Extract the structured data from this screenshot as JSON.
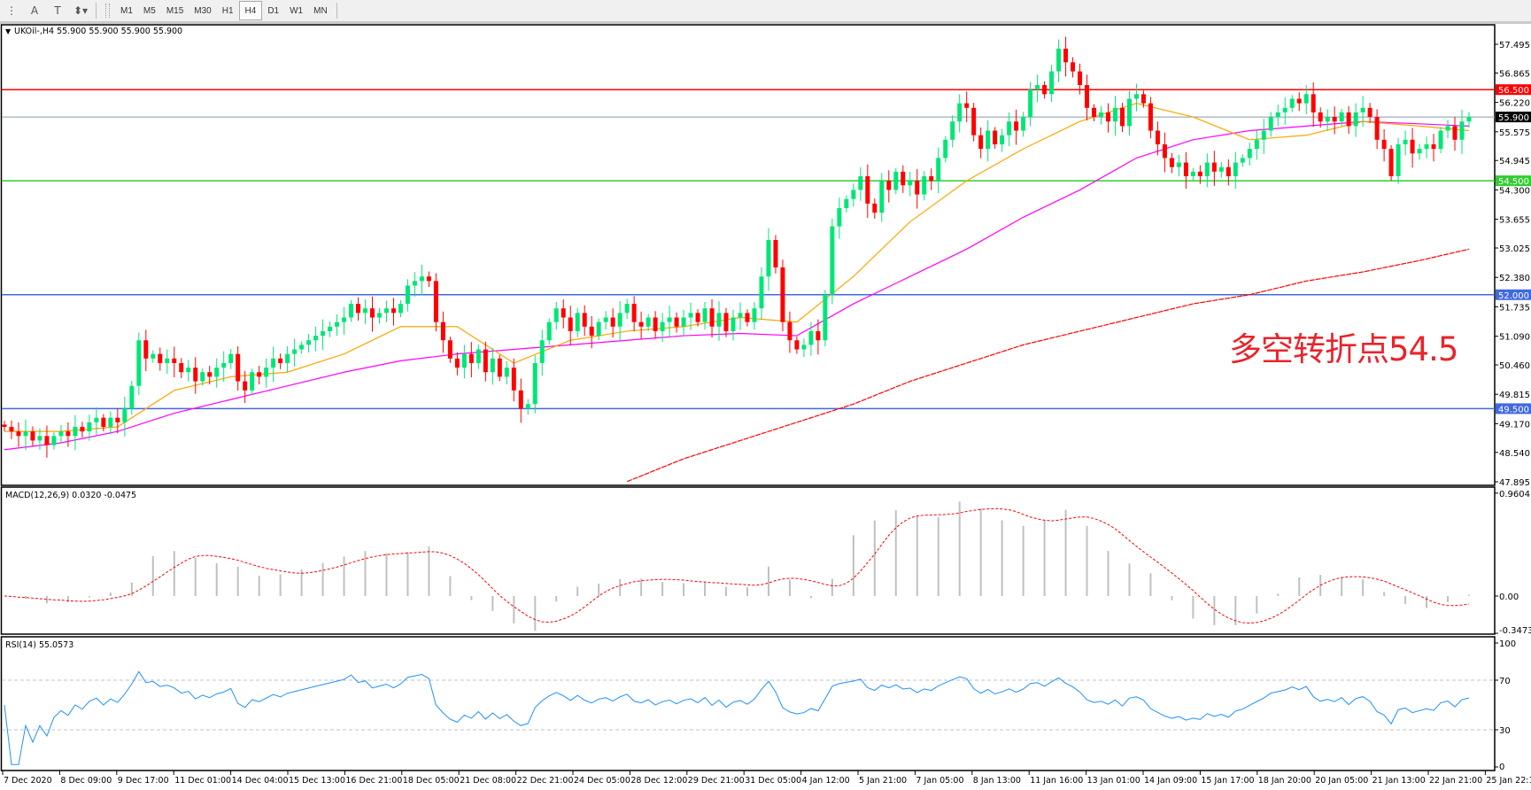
{
  "toolbar": {
    "tools": [
      {
        "icon": "grid-text-icon",
        "glyph": "⋮"
      },
      {
        "icon": "text-icon",
        "glyph": "A"
      },
      {
        "icon": "text-label-icon",
        "glyph": "T"
      },
      {
        "icon": "arrows-icon",
        "glyph": "⬍▾"
      }
    ],
    "timeframes": [
      "M1",
      "M5",
      "M15",
      "M30",
      "H1",
      "H4",
      "D1",
      "W1",
      "MN"
    ],
    "active_timeframe": "H4"
  },
  "chart": {
    "header": "UKOil-,H4  55.900 55.900 55.900 55.900",
    "symbol": "UKOil-",
    "timeframe": "H4",
    "ohlc": [
      55.9,
      55.9,
      55.9,
      55.9
    ],
    "annotation": "多空转折点54.5",
    "price_axis": [
      "57.495",
      "56.865",
      "56.220",
      "55.575",
      "54.945",
      "54.300",
      "53.655",
      "53.025",
      "52.380",
      "51.735",
      "51.090",
      "50.460",
      "49.815",
      "49.170",
      "48.540",
      "47.895"
    ],
    "price_range": [
      47.895,
      57.495
    ],
    "levels": [
      {
        "price": 56.5,
        "label": "56.500",
        "color": "#ff0000"
      },
      {
        "price": 55.9,
        "label": "55.900",
        "color": "#000000",
        "line_color": "#8a9aa6"
      },
      {
        "price": 54.5,
        "label": "54.500",
        "color": "#32cd32"
      },
      {
        "price": 52.0,
        "label": "52.000",
        "color": "#4169e1"
      },
      {
        "price": 49.5,
        "label": "49.500",
        "color": "#4169e1"
      }
    ],
    "colors": {
      "bull": "#00e676",
      "bear": "#ff0000",
      "ma_fast": "#ffa500",
      "ma_mid": "#ff00ff",
      "ma_slow": "#ff0000",
      "macd_hist": "#c0c0c0",
      "macd_signal": "#ff0000",
      "rsi": "#1e90ff"
    },
    "closes": [
      49.1,
      49.0,
      48.9,
      49.0,
      48.8,
      48.9,
      48.7,
      48.9,
      49.0,
      48.9,
      49.1,
      49.0,
      49.2,
      49.3,
      49.1,
      49.3,
      49.2,
      49.5,
      50.0,
      51.0,
      50.6,
      50.7,
      50.5,
      50.6,
      50.5,
      50.3,
      50.4,
      50.1,
      50.3,
      50.2,
      50.4,
      50.5,
      50.7,
      50.1,
      49.9,
      50.3,
      50.2,
      50.4,
      50.6,
      50.5,
      50.7,
      50.8,
      50.9,
      51.0,
      51.1,
      51.2,
      51.3,
      51.4,
      51.5,
      51.8,
      51.6,
      51.7,
      51.5,
      51.6,
      51.7,
      51.6,
      51.8,
      52.2,
      52.3,
      52.4,
      52.3,
      51.4,
      51.0,
      50.6,
      50.4,
      50.7,
      50.5,
      50.8,
      50.3,
      50.6,
      50.2,
      50.4,
      49.9,
      49.5,
      49.6,
      50.5,
      51.0,
      51.4,
      51.7,
      51.5,
      51.2,
      51.6,
      51.3,
      51.1,
      51.4,
      51.5,
      51.3,
      51.6,
      51.8,
      51.4,
      51.3,
      51.5,
      51.2,
      51.4,
      51.5,
      51.3,
      51.5,
      51.6,
      51.4,
      51.7,
      51.3,
      51.6,
      51.2,
      51.5,
      51.6,
      51.4,
      51.7,
      52.4,
      53.2,
      52.6,
      51.4,
      51.0,
      50.8,
      50.9,
      51.2,
      51.0,
      52.0,
      53.5,
      53.9,
      54.1,
      54.3,
      54.6,
      54.0,
      53.8,
      54.5,
      54.3,
      54.7,
      54.4,
      54.5,
      54.2,
      54.6,
      54.5,
      55.0,
      55.4,
      55.8,
      56.2,
      56.1,
      55.5,
      55.2,
      55.6,
      55.3,
      55.5,
      55.8,
      55.6,
      55.9,
      56.5,
      56.6,
      56.4,
      56.9,
      57.4,
      57.1,
      56.9,
      56.6,
      56.1,
      55.9,
      56.0,
      55.8,
      56.1,
      55.7,
      56.3,
      56.4,
      56.2,
      55.6,
      55.3,
      55.0,
      54.8,
      54.9,
      54.6,
      54.7,
      54.6,
      54.9,
      54.7,
      54.8,
      54.6,
      54.9,
      55.0,
      55.2,
      55.4,
      55.6,
      55.9,
      56.0,
      56.1,
      56.3,
      56.2,
      56.4,
      56.0,
      55.8,
      55.9,
      55.8,
      56.0,
      55.7,
      56.0,
      56.1,
      55.9,
      55.4,
      55.2,
      54.6,
      55.3,
      55.4,
      55.1,
      55.2,
      55.3,
      55.2,
      55.6,
      55.7,
      55.4,
      55.8,
      55.9
    ],
    "ma_fast": [
      49.0,
      49.0,
      49.1,
      49.9,
      50.2,
      50.3,
      50.7,
      51.3,
      51.3,
      50.5,
      51.0,
      51.2,
      51.3,
      51.5,
      51.4,
      52.4,
      53.6,
      54.5,
      55.2,
      55.8,
      56.2,
      55.9,
      55.4,
      55.5,
      55.8,
      55.7,
      55.6
    ],
    "ma_mid": [
      48.6,
      48.75,
      49.0,
      49.4,
      49.7,
      50.0,
      50.3,
      50.55,
      50.7,
      50.8,
      50.9,
      51.0,
      51.1,
      51.15,
      51.1,
      51.8,
      52.4,
      53.0,
      53.7,
      54.3,
      55.0,
      55.4,
      55.6,
      55.7,
      55.8,
      55.75,
      55.7
    ],
    "ma_slow": [
      null,
      null,
      null,
      null,
      null,
      null,
      null,
      null,
      null,
      null,
      null,
      47.9,
      48.4,
      48.8,
      49.2,
      49.6,
      50.1,
      50.5,
      50.9,
      51.2,
      51.5,
      51.8,
      52.0,
      52.3,
      52.5,
      52.75,
      53.0
    ]
  },
  "macd": {
    "header": "MACD(12,26,9) 0.0320 -0.0475",
    "axis": [
      "0.9604",
      "0.00",
      "-0.3473"
    ],
    "range": [
      -0.3473,
      0.9604
    ]
  },
  "rsi": {
    "header": "RSI(14) 55.0573",
    "axis": [
      "100",
      "70",
      "30",
      "0"
    ],
    "levels": [
      70,
      30
    ]
  },
  "time_axis": [
    "7 Dec 2020",
    "8 Dec 09:00",
    "9 Dec 17:00",
    "11 Dec 01:00",
    "14 Dec 04:00",
    "15 Dec 13:00",
    "16 Dec 21:00",
    "18 Dec 05:00",
    "21 Dec 08:00",
    "22 Dec 21:00",
    "24 Dec 05:00",
    "28 Dec 12:00",
    "29 Dec 21:00",
    "31 Dec 05:00",
    "4 Jan 12:00",
    "5 Jan 21:00",
    "7 Jan 05:00",
    "8 Jan 13:00",
    "11 Jan 16:00",
    "13 Jan 01:00",
    "14 Jan 09:00",
    "15 Jan 17:00",
    "18 Jan 20:00",
    "20 Jan 05:00",
    "21 Jan 13:00",
    "22 Jan 21:00",
    "25 Jan 22:15"
  ]
}
